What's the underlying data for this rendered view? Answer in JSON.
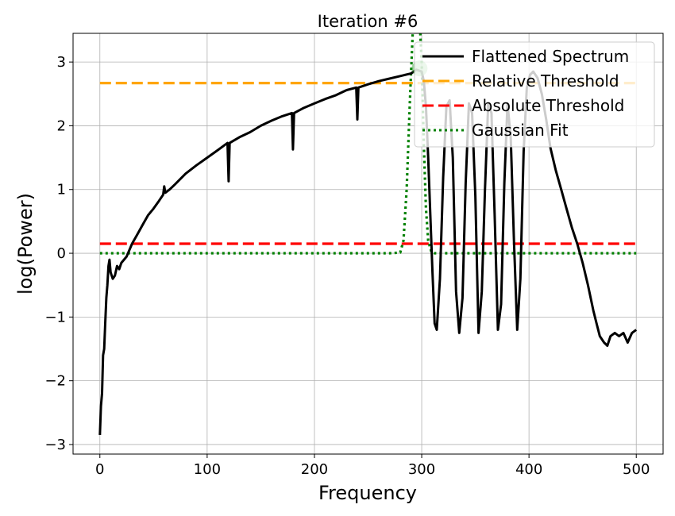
{
  "chart_data": {
    "type": "line",
    "title": "Iteration #6",
    "xlabel": "Frequency",
    "ylabel": "log(Power)",
    "xlim": [
      -25,
      525
    ],
    "ylim": [
      -3.15,
      3.45
    ],
    "x_ticks": [
      0,
      100,
      200,
      300,
      400,
      500
    ],
    "x_tick_labels": [
      "0",
      "100",
      "200",
      "300",
      "400",
      "500"
    ],
    "y_ticks": [
      -3,
      -2,
      -1,
      0,
      1,
      2,
      3
    ],
    "y_tick_labels": [
      "−3",
      "−2",
      "−1",
      "0",
      "1",
      "2",
      "3"
    ],
    "grid": true,
    "legend_position": "top-right",
    "series": [
      {
        "name": "Flattened Spectrum",
        "color": "#000000",
        "style": "solid",
        "x": [
          0,
          1,
          2,
          3,
          4,
          5,
          6,
          7,
          8,
          9,
          10,
          12,
          14,
          16,
          18,
          20,
          25,
          30,
          35,
          40,
          45,
          50,
          55,
          59,
          60,
          61,
          65,
          70,
          80,
          90,
          100,
          110,
          119,
          120,
          121,
          130,
          140,
          150,
          160,
          170,
          179,
          180,
          181,
          190,
          200,
          210,
          220,
          230,
          239,
          240,
          241,
          250,
          260,
          270,
          280,
          290,
          295,
          300,
          302,
          304,
          306,
          308,
          310,
          312,
          314,
          317,
          320,
          323,
          326,
          329,
          332,
          335,
          338,
          341,
          344,
          347,
          350,
          353,
          356,
          359,
          362,
          365,
          368,
          371,
          374,
          377,
          380,
          383,
          386,
          389,
          392,
          395,
          398,
          401,
          404,
          408,
          412,
          416,
          420,
          425,
          430,
          435,
          440,
          445,
          450,
          455,
          460,
          463,
          466,
          470,
          473,
          476,
          480,
          484,
          488,
          492,
          496,
          500
        ],
        "y": [
          -2.85,
          -2.4,
          -2.2,
          -1.6,
          -1.5,
          -1.1,
          -0.7,
          -0.5,
          -0.2,
          -0.1,
          -0.3,
          -0.4,
          -0.35,
          -0.2,
          -0.25,
          -0.15,
          -0.05,
          0.15,
          0.3,
          0.45,
          0.6,
          0.7,
          0.82,
          0.92,
          1.05,
          0.95,
          1.0,
          1.08,
          1.25,
          1.38,
          1.5,
          1.62,
          1.73,
          1.13,
          1.73,
          1.82,
          1.9,
          2.0,
          2.08,
          2.15,
          2.2,
          1.63,
          2.2,
          2.28,
          2.35,
          2.42,
          2.48,
          2.56,
          2.6,
          2.1,
          2.6,
          2.65,
          2.7,
          2.74,
          2.78,
          2.82,
          2.88,
          2.85,
          2.7,
          2.3,
          1.5,
          0.6,
          -0.3,
          -1.1,
          -1.2,
          -0.4,
          1.2,
          2.3,
          2.4,
          1.5,
          -0.6,
          -1.25,
          -0.7,
          1.1,
          2.35,
          2.2,
          0.9,
          -1.25,
          -0.6,
          1.0,
          2.35,
          2.2,
          0.6,
          -1.2,
          -0.8,
          1.1,
          2.35,
          1.8,
          0.2,
          -1.2,
          -0.4,
          1.6,
          2.6,
          2.8,
          2.85,
          2.75,
          2.5,
          2.1,
          1.65,
          1.3,
          1.0,
          0.7,
          0.4,
          0.15,
          -0.15,
          -0.5,
          -0.9,
          -1.1,
          -1.3,
          -1.4,
          -1.45,
          -1.3,
          -1.25,
          -1.3,
          -1.25,
          -1.4,
          -1.25,
          -1.2
        ]
      },
      {
        "name": "Relative Threshold",
        "color": "#FFA500",
        "style": "dashed",
        "x": [
          0,
          500
        ],
        "y": [
          2.67,
          2.67
        ]
      },
      {
        "name": "Absolute Threshold",
        "color": "#FF0000",
        "style": "dashed",
        "x": [
          0,
          500
        ],
        "y": [
          0.15,
          0.15
        ]
      },
      {
        "name": "Gaussian Fit",
        "color": "#008000",
        "style": "dotted",
        "x": [
          0,
          270,
          280,
          283,
          286,
          289,
          292,
          294,
          296,
          298,
          300,
          302,
          304,
          306,
          309,
          312,
          500
        ],
        "y": [
          0,
          0,
          0.01,
          0.2,
          1.0,
          2.4,
          3.6,
          3.7,
          3.9,
          3.7,
          3.0,
          1.7,
          0.7,
          0.2,
          0.02,
          0,
          0
        ]
      }
    ],
    "peak_marker": {
      "x": 298,
      "y": 2.9,
      "color": "#2ca02c"
    }
  }
}
